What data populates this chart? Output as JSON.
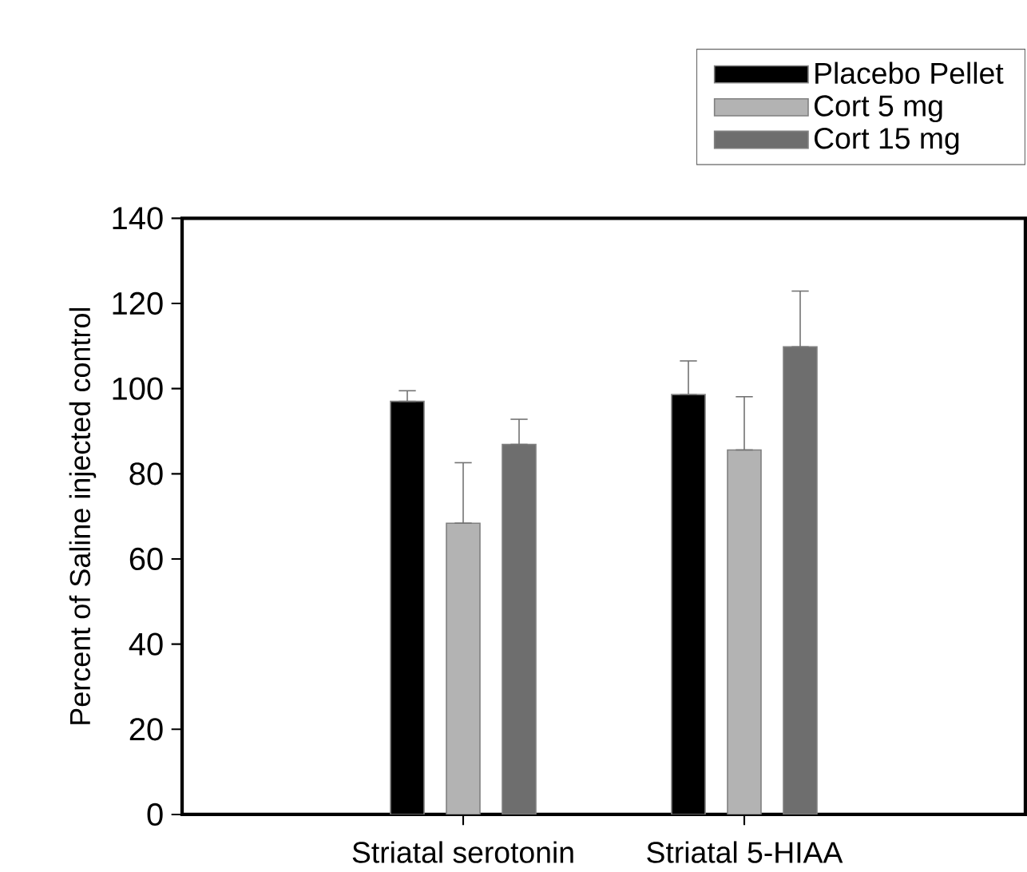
{
  "chart_data": {
    "type": "bar",
    "ylabel": "Percent of Saline injected control",
    "categories": [
      "Striatal serotonin",
      "Striatal 5-HIAA"
    ],
    "series": [
      {
        "name": "Placebo Pellet",
        "color": "#000000",
        "values": [
          97,
          98.6
        ],
        "errors": [
          [
            97,
            99.5
          ],
          [
            98.6,
            106.5
          ]
        ]
      },
      {
        "name": "Cort 5 mg",
        "color": "#b3b3b3",
        "values": [
          68.4,
          85.6
        ],
        "errors": [
          [
            68.4,
            82.6
          ],
          [
            85.6,
            98.1
          ]
        ]
      },
      {
        "name": "Cort 15 mg",
        "color": "#6e6e6e",
        "values": [
          86.9,
          109.8
        ],
        "errors": [
          [
            86.9,
            92.8
          ],
          [
            109.8,
            122.9
          ]
        ]
      }
    ],
    "ylim": [
      0,
      140
    ],
    "yticks": [
      0,
      20,
      40,
      60,
      80,
      100,
      120,
      140
    ],
    "legend": "top right",
    "grid": false
  }
}
